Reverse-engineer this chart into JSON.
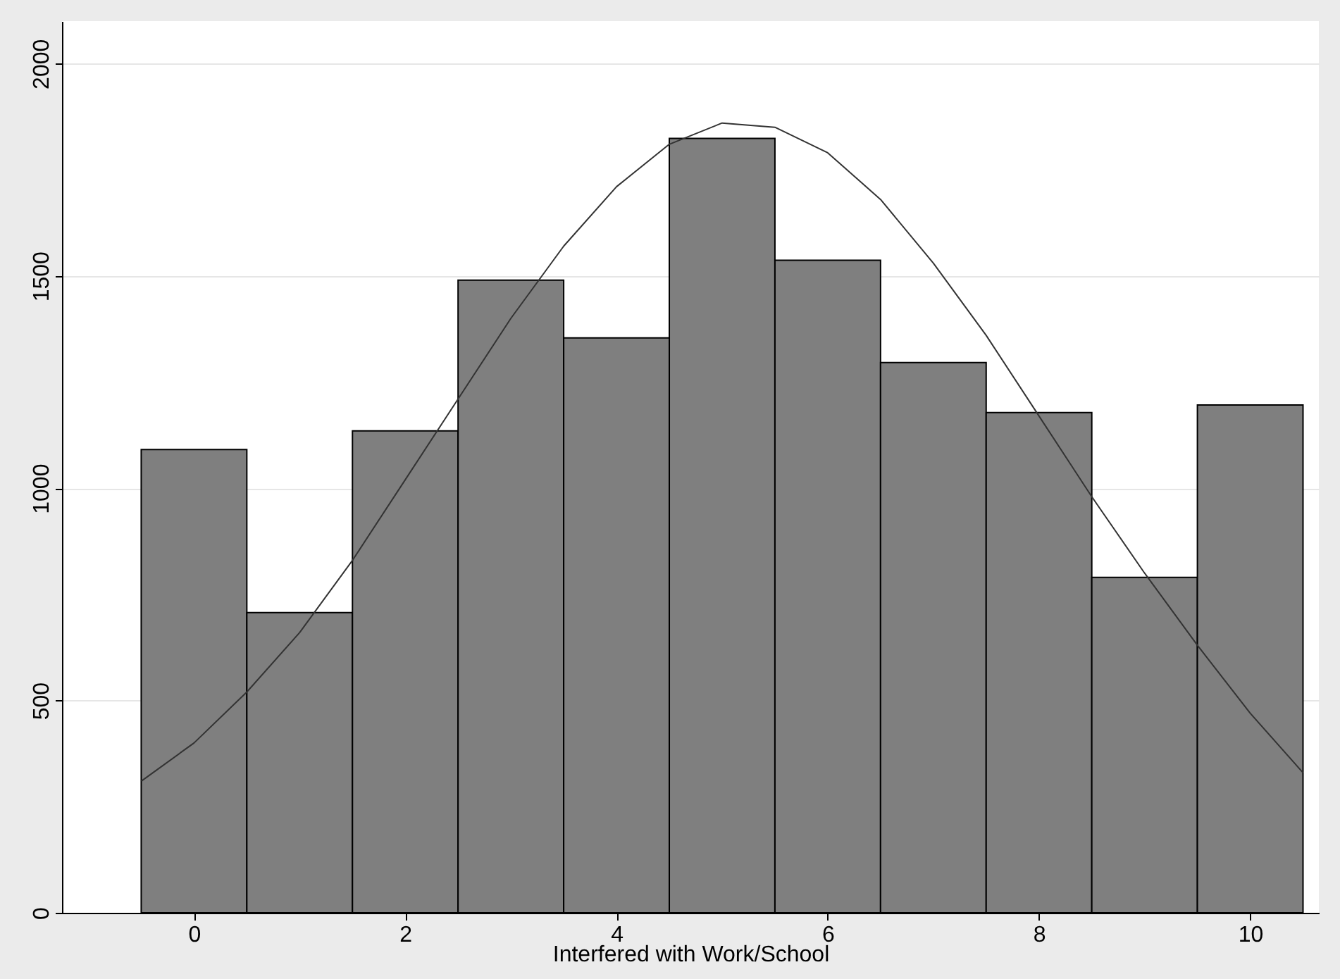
{
  "chart_data": {
    "type": "histogram",
    "xlabel": "Interfered with Work/School",
    "bins": [
      -0.5,
      0.5,
      1.5,
      2.5,
      3.5,
      4.5,
      5.5,
      6.5,
      7.5,
      8.5,
      9.5,
      10.5
    ],
    "values": [
      1091,
      707,
      1135,
      1490,
      1354,
      1824,
      1537,
      1296,
      1178,
      790,
      1196
    ],
    "color": "#7f7f7f",
    "xlim": [
      -1.25,
      10.65
    ],
    "xticks": [
      0,
      2,
      4,
      6,
      8,
      10
    ],
    "ylim": [
      0,
      2100
    ],
    "yticks": [
      0,
      500,
      1000,
      1500,
      2000
    ],
    "grid": "y",
    "series": [
      {
        "type": "line",
        "color": "#333333",
        "x": [
          -0.5,
          0,
          0.5,
          1,
          1.5,
          2,
          2.5,
          3,
          3.5,
          4,
          4.5,
          5,
          5.5,
          6,
          6.5,
          7,
          7.5,
          8,
          8.5,
          9,
          9.5,
          10,
          10.5
        ],
        "values": [
          310,
          400,
          520,
          660,
          830,
          1020,
          1210,
          1400,
          1570,
          1710,
          1810,
          1860,
          1850,
          1790,
          1680,
          1530,
          1360,
          1170,
          980,
          800,
          630,
          470,
          330
        ]
      }
    ]
  }
}
